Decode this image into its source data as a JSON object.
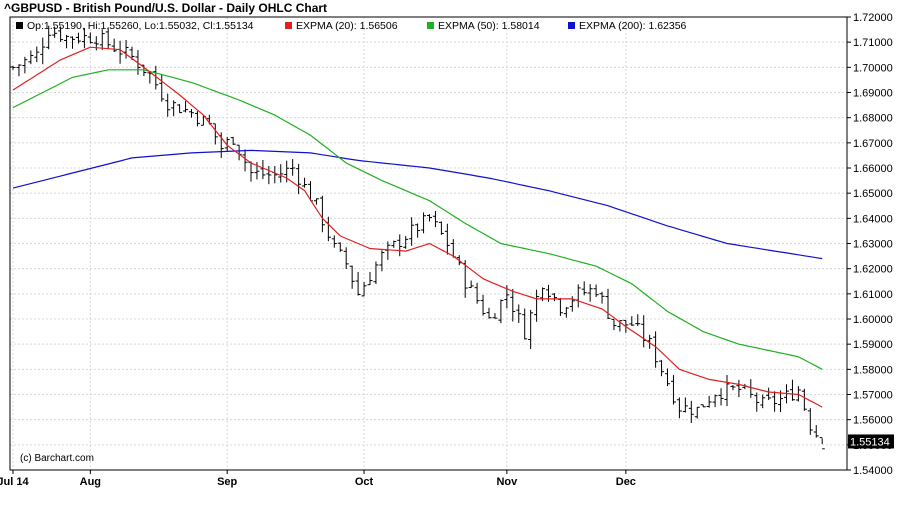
{
  "chart_data": {
    "type": "ohlc",
    "title": "^GBPUSD - British Pound/U.S. Dollar - Daily OHLC Chart",
    "ylim": [
      1.54,
      1.72
    ],
    "y_ticks": [
      "1.54000",
      "1.55000",
      "1.56000",
      "1.57000",
      "1.58000",
      "1.59000",
      "1.60000",
      "1.61000",
      "1.62000",
      "1.63000",
      "1.64000",
      "1.65000",
      "1.66000",
      "1.67000",
      "1.68000",
      "1.69000",
      "1.70000",
      "1.71000",
      "1.72000"
    ],
    "x_ticks": [
      "Jul 14",
      "Aug",
      "Sep",
      "Oct",
      "Nov",
      "Dec"
    ],
    "x_tick_index": [
      0,
      13,
      36,
      59,
      83,
      103
    ],
    "num_bars": 137,
    "last_price_label": "1.55134",
    "credit": "(c) Barchart.com",
    "legend": [
      {
        "text": "Op:1.55190, Hi:1.55260, Lo:1.55032, Cl:1.55134",
        "color": "#000000"
      },
      {
        "text": "EXPMA (20): 1.56506",
        "color": "#e02020"
      },
      {
        "text": "EXPMA (50): 1.58014",
        "color": "#20b020"
      },
      {
        "text": "EXPMA (200): 1.62356",
        "color": "#1010d0"
      }
    ],
    "close_anchors": [
      [
        0,
        1.7
      ],
      [
        4,
        1.705
      ],
      [
        6,
        1.715
      ],
      [
        9,
        1.712
      ],
      [
        14,
        1.712
      ],
      [
        20,
        1.704
      ],
      [
        23,
        1.697
      ],
      [
        26,
        1.686
      ],
      [
        30,
        1.682
      ],
      [
        33,
        1.677
      ],
      [
        35,
        1.668
      ],
      [
        37,
        1.672
      ],
      [
        40,
        1.658
      ],
      [
        44,
        1.657
      ],
      [
        47,
        1.66
      ],
      [
        51,
        1.645
      ],
      [
        54,
        1.628
      ],
      [
        56,
        1.622
      ],
      [
        58,
        1.61
      ],
      [
        62,
        1.625
      ],
      [
        66,
        1.633
      ],
      [
        70,
        1.64
      ],
      [
        73,
        1.63
      ],
      [
        76,
        1.615
      ],
      [
        80,
        1.6
      ],
      [
        83,
        1.61
      ],
      [
        86,
        1.595
      ],
      [
        89,
        1.615
      ],
      [
        92,
        1.605
      ],
      [
        95,
        1.61
      ],
      [
        98,
        1.612
      ],
      [
        101,
        1.598
      ],
      [
        104,
        1.598
      ],
      [
        107,
        1.59
      ],
      [
        110,
        1.575
      ],
      [
        112,
        1.565
      ],
      [
        115,
        1.564
      ],
      [
        118,
        1.571
      ],
      [
        122,
        1.572
      ],
      [
        126,
        1.566
      ],
      [
        129,
        1.568
      ],
      [
        132,
        1.572
      ],
      [
        134,
        1.558
      ],
      [
        136,
        1.551
      ]
    ],
    "ema20": [
      [
        0,
        1.691
      ],
      [
        8,
        1.703
      ],
      [
        13,
        1.708
      ],
      [
        18,
        1.707
      ],
      [
        22,
        1.7
      ],
      [
        28,
        1.689
      ],
      [
        32,
        1.681
      ],
      [
        36,
        1.669
      ],
      [
        40,
        1.662
      ],
      [
        44,
        1.658
      ],
      [
        46,
        1.656
      ],
      [
        49,
        1.651
      ],
      [
        52,
        1.64
      ],
      [
        55,
        1.633
      ],
      [
        60,
        1.628
      ],
      [
        66,
        1.627
      ],
      [
        70,
        1.63
      ],
      [
        74,
        1.625
      ],
      [
        79,
        1.616
      ],
      [
        84,
        1.611
      ],
      [
        88,
        1.608
      ],
      [
        94,
        1.608
      ],
      [
        99,
        1.604
      ],
      [
        103,
        1.597
      ],
      [
        108,
        1.589
      ],
      [
        112,
        1.58
      ],
      [
        117,
        1.576
      ],
      [
        122,
        1.574
      ],
      [
        127,
        1.571
      ],
      [
        132,
        1.57
      ],
      [
        136,
        1.565
      ]
    ],
    "ema50": [
      [
        0,
        1.684
      ],
      [
        10,
        1.696
      ],
      [
        16,
        1.699
      ],
      [
        22,
        1.699
      ],
      [
        30,
        1.694
      ],
      [
        38,
        1.687
      ],
      [
        44,
        1.681
      ],
      [
        50,
        1.673
      ],
      [
        56,
        1.662
      ],
      [
        62,
        1.655
      ],
      [
        70,
        1.647
      ],
      [
        76,
        1.638
      ],
      [
        82,
        1.63
      ],
      [
        90,
        1.626
      ],
      [
        98,
        1.621
      ],
      [
        104,
        1.614
      ],
      [
        110,
        1.603
      ],
      [
        116,
        1.595
      ],
      [
        122,
        1.59
      ],
      [
        128,
        1.587
      ],
      [
        132,
        1.585
      ],
      [
        136,
        1.58
      ]
    ],
    "ema200": [
      [
        0,
        1.652
      ],
      [
        10,
        1.658
      ],
      [
        20,
        1.664
      ],
      [
        30,
        1.666
      ],
      [
        40,
        1.667
      ],
      [
        50,
        1.666
      ],
      [
        58,
        1.663
      ],
      [
        70,
        1.66
      ],
      [
        80,
        1.656
      ],
      [
        90,
        1.651
      ],
      [
        100,
        1.645
      ],
      [
        110,
        1.637
      ],
      [
        120,
        1.63
      ],
      [
        128,
        1.627
      ],
      [
        136,
        1.624
      ]
    ]
  }
}
